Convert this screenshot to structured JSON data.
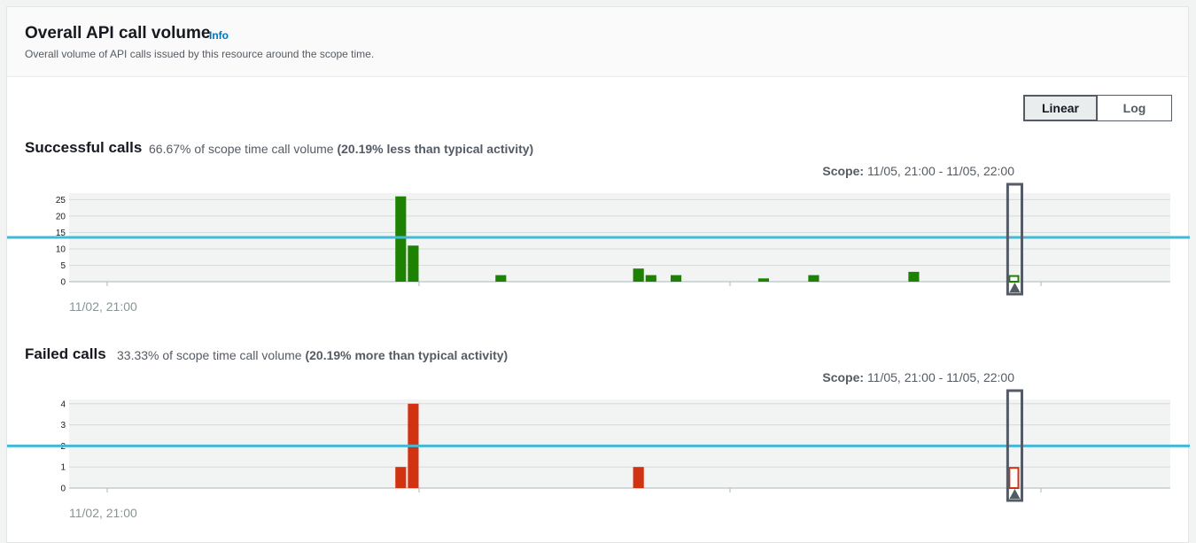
{
  "header": {
    "title": "Overall API call volume",
    "info": "Info",
    "subtitle": "Overall volume of API calls issued by this resource around the scope time."
  },
  "scale_toggle": {
    "linear": "Linear",
    "log": "Log",
    "selected": "Linear"
  },
  "successful": {
    "title": "Successful calls",
    "pct": "66.67% of scope time call volume",
    "typical": "(20.19% less than typical activity)",
    "scope_label": "Scope:",
    "scope_value": "11/05, 21:00 - 11/05, 22:00",
    "x_label": "11/02, 21:00"
  },
  "failed": {
    "title": "Failed calls",
    "pct": "33.33% of scope time call volume",
    "typical": "(20.19% more than typical activity)",
    "scope_label": "Scope:",
    "scope_value": "11/05, 21:00 - 11/05, 22:00",
    "x_label": "11/02, 21:00"
  },
  "chart_data": [
    {
      "type": "bar",
      "name": "Successful calls",
      "color": "#1d8102",
      "baseline_color": "#44b9d6",
      "yticks": [
        0,
        5,
        10,
        15,
        20,
        25
      ],
      "ylim": [
        0,
        27
      ],
      "typical": 13.5,
      "num_slots": 88,
      "bars": [
        {
          "slot": 26,
          "value": 26
        },
        {
          "slot": 27,
          "value": 11
        },
        {
          "slot": 34,
          "value": 2
        },
        {
          "slot": 45,
          "value": 4
        },
        {
          "slot": 46,
          "value": 2
        },
        {
          "slot": 48,
          "value": 2
        },
        {
          "slot": 55,
          "value": 1
        },
        {
          "slot": 59,
          "value": 2
        },
        {
          "slot": 67,
          "value": 3
        },
        {
          "slot": 75,
          "value": 2,
          "scope": true
        }
      ],
      "scope_slot": 75
    },
    {
      "type": "bar",
      "name": "Failed calls",
      "color": "#d13212",
      "baseline_color": "#44b9d6",
      "yticks": [
        0,
        1,
        2,
        3,
        4
      ],
      "ylim": [
        0,
        4.2
      ],
      "typical": 2,
      "num_slots": 88,
      "bars": [
        {
          "slot": 26,
          "value": 1
        },
        {
          "slot": 27,
          "value": 4
        },
        {
          "slot": 45,
          "value": 1
        },
        {
          "slot": 75,
          "value": 1,
          "scope": true
        }
      ],
      "scope_slot": 75
    }
  ]
}
